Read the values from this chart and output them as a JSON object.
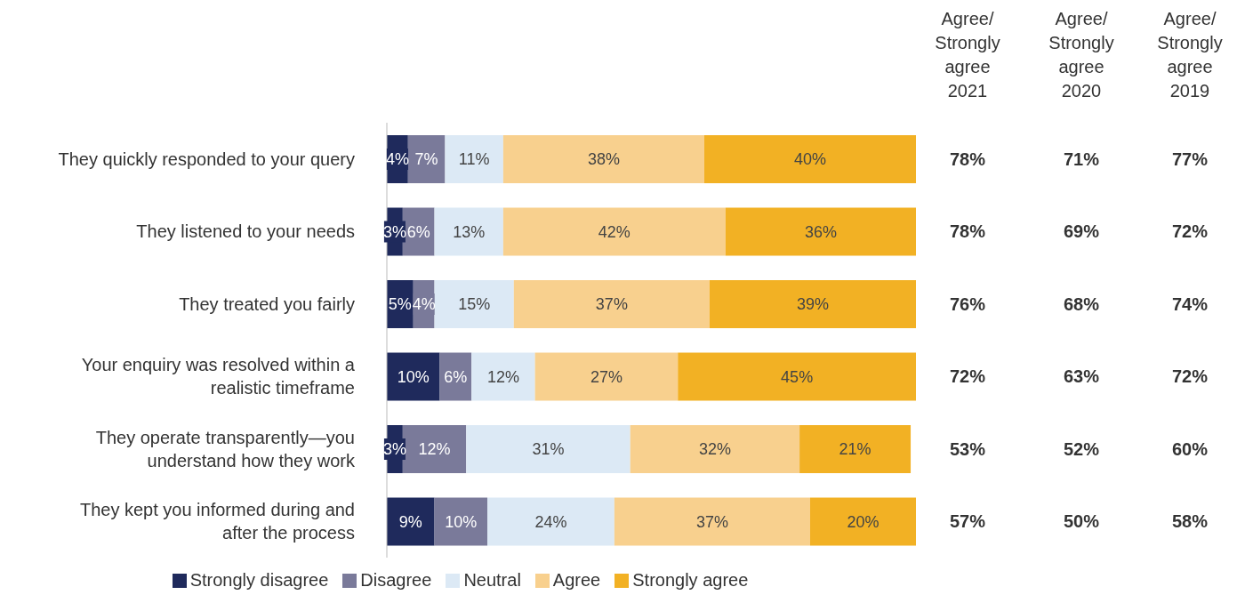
{
  "chart_data": {
    "type": "bar",
    "orientation": "horizontal",
    "stacked": true,
    "categories": [
      "They quickly responded to your query",
      "They listened to your needs",
      "They treated you fairly",
      "Your enquiry was resolved within a\nrealistic timeframe",
      "They operate transparently—you\nunderstand how they work",
      "They kept you informed during and\nafter the process"
    ],
    "series": [
      {
        "name": "Strongly disagree",
        "color": "#1f2a5c",
        "values": [
          4,
          3,
          5,
          10,
          3,
          9
        ],
        "value_labels": [
          "4%",
          "3%",
          "5%",
          "10%",
          "3%",
          "9%"
        ]
      },
      {
        "name": "Disagree",
        "color": "#7a7a9a",
        "values": [
          7,
          6,
          4,
          6,
          12,
          10
        ],
        "value_labels": [
          "7%",
          "6%",
          "4%",
          "6%",
          "12%",
          "10%"
        ]
      },
      {
        "name": "Neutral",
        "color": "#dce9f5",
        "values": [
          11,
          13,
          15,
          12,
          31,
          24
        ],
        "value_labels": [
          "11%",
          "13%",
          "15%",
          "12%",
          "31%",
          "24%"
        ]
      },
      {
        "name": "Agree",
        "color": "#f8d08e",
        "values": [
          38,
          42,
          37,
          27,
          32,
          37
        ],
        "value_labels": [
          "38%",
          "42%",
          "37%",
          "27%",
          "32%",
          "37%"
        ]
      },
      {
        "name": "Strongly agree",
        "color": "#f2b124",
        "values": [
          40,
          36,
          39,
          45,
          21,
          20
        ],
        "value_labels": [
          "40%",
          "36%",
          "39%",
          "45%",
          "21%",
          "20%"
        ]
      }
    ],
    "xlim": [
      0,
      100
    ],
    "tick_labels": "y",
    "legend": "bottom",
    "annotations": [
      "Agree/\nStrongly\nagree\n2021",
      "Agree/\nStrongly\nagree\n2020",
      "Agree/\nStrongly\nagree\n2019",
      "78%",
      "71%",
      "77%",
      "78%",
      "69%",
      "72%",
      "76%",
      "68%",
      "74%",
      "72%",
      "63%",
      "72%",
      "53%",
      "52%",
      "60%",
      "57%",
      "50%",
      "58%"
    ]
  }
}
